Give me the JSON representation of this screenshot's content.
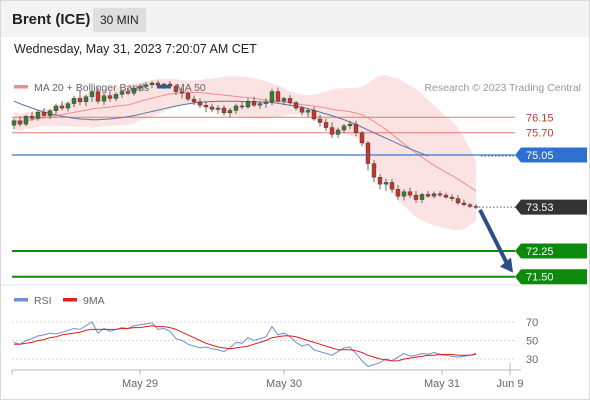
{
  "header": {
    "instrument": "Brent (ICE)",
    "interval": "30 MIN"
  },
  "timestamp": "Wednesday, May 31, 2023 7:20:07 AM CET",
  "legend": {
    "bollinger": {
      "label": "MA 20 + Bollinger Bands",
      "color": "#f08c8c"
    },
    "ma50": {
      "label": "MA 50",
      "color": "#2d5b9b"
    }
  },
  "credit": "Research © 2023 Trading Central",
  "levels": [
    {
      "value": 76.15,
      "label": "76.15",
      "kind": "resistance",
      "color": "#e57b73"
    },
    {
      "value": 75.7,
      "label": "75.70",
      "kind": "resistance",
      "color": "#e57b73"
    },
    {
      "value": 75.05,
      "label": "75.05",
      "kind": "pivot",
      "color": "#3a78d4"
    },
    {
      "value": 73.53,
      "label": "73.53",
      "kind": "last-price",
      "color": "#333333"
    },
    {
      "value": 72.25,
      "label": "72.25",
      "kind": "support",
      "color": "#0d8a0d"
    },
    {
      "value": 71.5,
      "label": "71.50",
      "kind": "support",
      "color": "#0d8a0d"
    }
  ],
  "chart_data": [
    {
      "type": "candlestick",
      "ylim": [
        71.2,
        77.5
      ],
      "last_price": 73.53,
      "candles_ohlc": [
        [
          75.92,
          76.12,
          75.8,
          76.05
        ],
        [
          76.05,
          76.18,
          75.88,
          75.95
        ],
        [
          75.95,
          76.22,
          75.9,
          76.18
        ],
        [
          76.18,
          76.3,
          76.05,
          76.12
        ],
        [
          76.12,
          76.35,
          76.05,
          76.3
        ],
        [
          76.3,
          76.42,
          76.15,
          76.2
        ],
        [
          76.2,
          76.38,
          76.1,
          76.34
        ],
        [
          76.34,
          76.55,
          76.25,
          76.48
        ],
        [
          76.48,
          76.62,
          76.35,
          76.42
        ],
        [
          76.42,
          76.6,
          76.32,
          76.55
        ],
        [
          76.55,
          76.78,
          76.45,
          76.7
        ],
        [
          76.7,
          76.92,
          76.5,
          76.6
        ],
        [
          76.6,
          76.8,
          76.48,
          76.75
        ],
        [
          76.75,
          76.98,
          76.6,
          76.9
        ],
        [
          76.9,
          77.02,
          76.55,
          76.62
        ],
        [
          76.62,
          76.85,
          76.5,
          76.78
        ],
        [
          76.78,
          76.9,
          76.6,
          76.7
        ],
        [
          76.7,
          76.88,
          76.62,
          76.82
        ],
        [
          76.82,
          76.95,
          76.72,
          76.9
        ],
        [
          76.9,
          77.0,
          76.8,
          76.85
        ],
        [
          76.85,
          77.05,
          76.78,
          77.0
        ],
        [
          77.0,
          77.12,
          76.9,
          77.05
        ],
        [
          77.05,
          77.18,
          76.98,
          77.1
        ],
        [
          77.1,
          77.2,
          77.0,
          77.15
        ],
        [
          77.15,
          77.22,
          77.0,
          77.08
        ],
        [
          77.08,
          77.15,
          76.98,
          77.12
        ],
        [
          77.12,
          77.2,
          77.02,
          77.06
        ],
        [
          77.06,
          77.12,
          76.8,
          76.9
        ],
        [
          76.9,
          77.0,
          76.7,
          76.85
        ],
        [
          76.85,
          76.9,
          76.62,
          76.68
        ],
        [
          76.68,
          76.78,
          76.5,
          76.6
        ],
        [
          76.6,
          76.7,
          76.42,
          76.5
        ],
        [
          76.5,
          76.62,
          76.3,
          76.45
        ],
        [
          76.45,
          76.55,
          76.3,
          76.38
        ],
        [
          76.38,
          76.5,
          76.25,
          76.42
        ],
        [
          76.42,
          76.5,
          76.2,
          76.28
        ],
        [
          76.28,
          76.42,
          76.15,
          76.35
        ],
        [
          76.35,
          76.55,
          76.25,
          76.48
        ],
        [
          76.48,
          76.6,
          76.38,
          76.45
        ],
        [
          76.45,
          76.7,
          76.4,
          76.62
        ],
        [
          76.62,
          76.75,
          76.45,
          76.5
        ],
        [
          76.5,
          76.62,
          76.4,
          76.55
        ],
        [
          76.55,
          76.7,
          76.42,
          76.6
        ],
        [
          76.6,
          76.98,
          76.5,
          76.9
        ],
        [
          76.9,
          77.02,
          76.58,
          76.62
        ],
        [
          76.62,
          76.75,
          76.5,
          76.7
        ],
        [
          76.7,
          76.8,
          76.52,
          76.58
        ],
        [
          76.58,
          76.62,
          76.35,
          76.42
        ],
        [
          76.42,
          76.48,
          76.2,
          76.3
        ],
        [
          76.3,
          76.42,
          76.15,
          76.35
        ],
        [
          76.35,
          76.45,
          76.05,
          76.1
        ],
        [
          76.1,
          76.22,
          75.88,
          76.0
        ],
        [
          76.0,
          76.1,
          75.75,
          75.85
        ],
        [
          75.85,
          76.0,
          75.55,
          75.65
        ],
        [
          75.65,
          75.85,
          75.55,
          75.78
        ],
        [
          75.78,
          75.95,
          75.7,
          75.9
        ],
        [
          75.9,
          76.05,
          75.8,
          75.95
        ],
        [
          75.95,
          76.05,
          75.6,
          75.7
        ],
        [
          75.7,
          75.75,
          75.3,
          75.4
        ],
        [
          75.4,
          75.45,
          74.6,
          74.8
        ],
        [
          74.8,
          74.9,
          74.25,
          74.4
        ],
        [
          74.4,
          74.5,
          74.05,
          74.2
        ],
        [
          74.2,
          74.35,
          74.0,
          74.25
        ],
        [
          74.25,
          74.35,
          73.95,
          74.05
        ],
        [
          74.05,
          74.18,
          73.75,
          73.85
        ],
        [
          73.85,
          74.05,
          73.72,
          73.98
        ],
        [
          73.98,
          74.1,
          73.8,
          73.88
        ],
        [
          73.88,
          74.0,
          73.65,
          73.75
        ],
        [
          73.75,
          73.95,
          73.65,
          73.9
        ],
        [
          73.9,
          74.0,
          73.8,
          73.85
        ],
        [
          73.85,
          73.98,
          73.78,
          73.92
        ],
        [
          73.92,
          74.0,
          73.82,
          73.88
        ],
        [
          73.88,
          73.95,
          73.78,
          73.82
        ],
        [
          73.82,
          73.9,
          73.7,
          73.78
        ],
        [
          73.78,
          73.88,
          73.6,
          73.65
        ],
        [
          73.65,
          73.75,
          73.55,
          73.6
        ],
        [
          73.6,
          73.65,
          73.5,
          73.55
        ],
        [
          73.55,
          73.62,
          73.48,
          73.53
        ]
      ],
      "ma50": [
        76.62,
        76.55,
        76.48,
        76.42,
        76.36,
        76.3,
        76.26,
        76.22,
        76.18,
        76.15,
        76.12,
        76.1,
        76.09,
        76.08,
        76.08,
        76.09,
        76.1,
        76.12,
        76.14,
        76.17,
        76.2,
        76.24,
        76.28,
        76.32,
        76.36,
        76.4,
        76.44,
        76.48,
        76.51,
        76.54,
        76.57,
        76.59,
        76.6,
        76.61,
        76.62,
        76.62,
        76.62,
        76.62,
        76.61,
        76.6,
        76.6,
        76.6,
        76.59,
        76.58,
        76.56,
        76.53,
        76.5,
        76.47,
        76.44,
        76.4,
        76.35,
        76.3,
        76.25,
        76.2,
        76.14,
        76.08,
        76.01,
        75.94,
        75.86,
        75.78,
        75.7,
        75.62,
        75.54,
        75.46,
        75.38,
        75.3,
        75.23,
        75.16,
        75.09,
        75.02
      ],
      "rsi": [
        48,
        46,
        50,
        52,
        55,
        56,
        58,
        57,
        59,
        61,
        63,
        62,
        66,
        70,
        58,
        63,
        60,
        62,
        64,
        63,
        66,
        67,
        68,
        69,
        62,
        63,
        60,
        52,
        50,
        46,
        44,
        42,
        43,
        41,
        40,
        38,
        42,
        48,
        47,
        53,
        50,
        52,
        54,
        65,
        56,
        58,
        54,
        48,
        44,
        46,
        40,
        38,
        36,
        34,
        38,
        42,
        43,
        36,
        28,
        22,
        24,
        26,
        30,
        28,
        32,
        36,
        33,
        34,
        36,
        35,
        37,
        35,
        34,
        33,
        32,
        33,
        34,
        36
      ],
      "rsi_ma9": [
        46,
        46,
        47,
        48,
        50,
        51,
        53,
        54,
        56,
        57,
        58,
        59,
        61,
        62,
        62,
        62,
        62,
        62,
        63,
        63,
        64,
        64,
        65,
        66,
        65,
        65,
        64,
        62,
        59,
        56,
        53,
        50,
        47,
        45,
        43,
        42,
        41,
        42,
        43,
        44,
        46,
        48,
        50,
        53,
        54,
        55,
        55,
        54,
        52,
        50,
        48,
        46,
        44,
        42,
        40,
        40,
        40,
        39,
        37,
        34,
        32,
        30,
        29,
        28,
        28,
        30,
        31,
        32,
        33,
        34,
        34,
        35,
        35,
        35,
        34,
        34,
        34,
        35
      ],
      "rsi_levels": [
        70,
        50,
        30
      ],
      "x_axis_labels": [
        "May 29",
        "May 30",
        "May 31",
        "Jun 9"
      ],
      "rsi_legend": [
        "RSI",
        "9MA"
      ],
      "rsi_colors": [
        "#6f8fd8",
        "#e01f1f"
      ]
    }
  ]
}
